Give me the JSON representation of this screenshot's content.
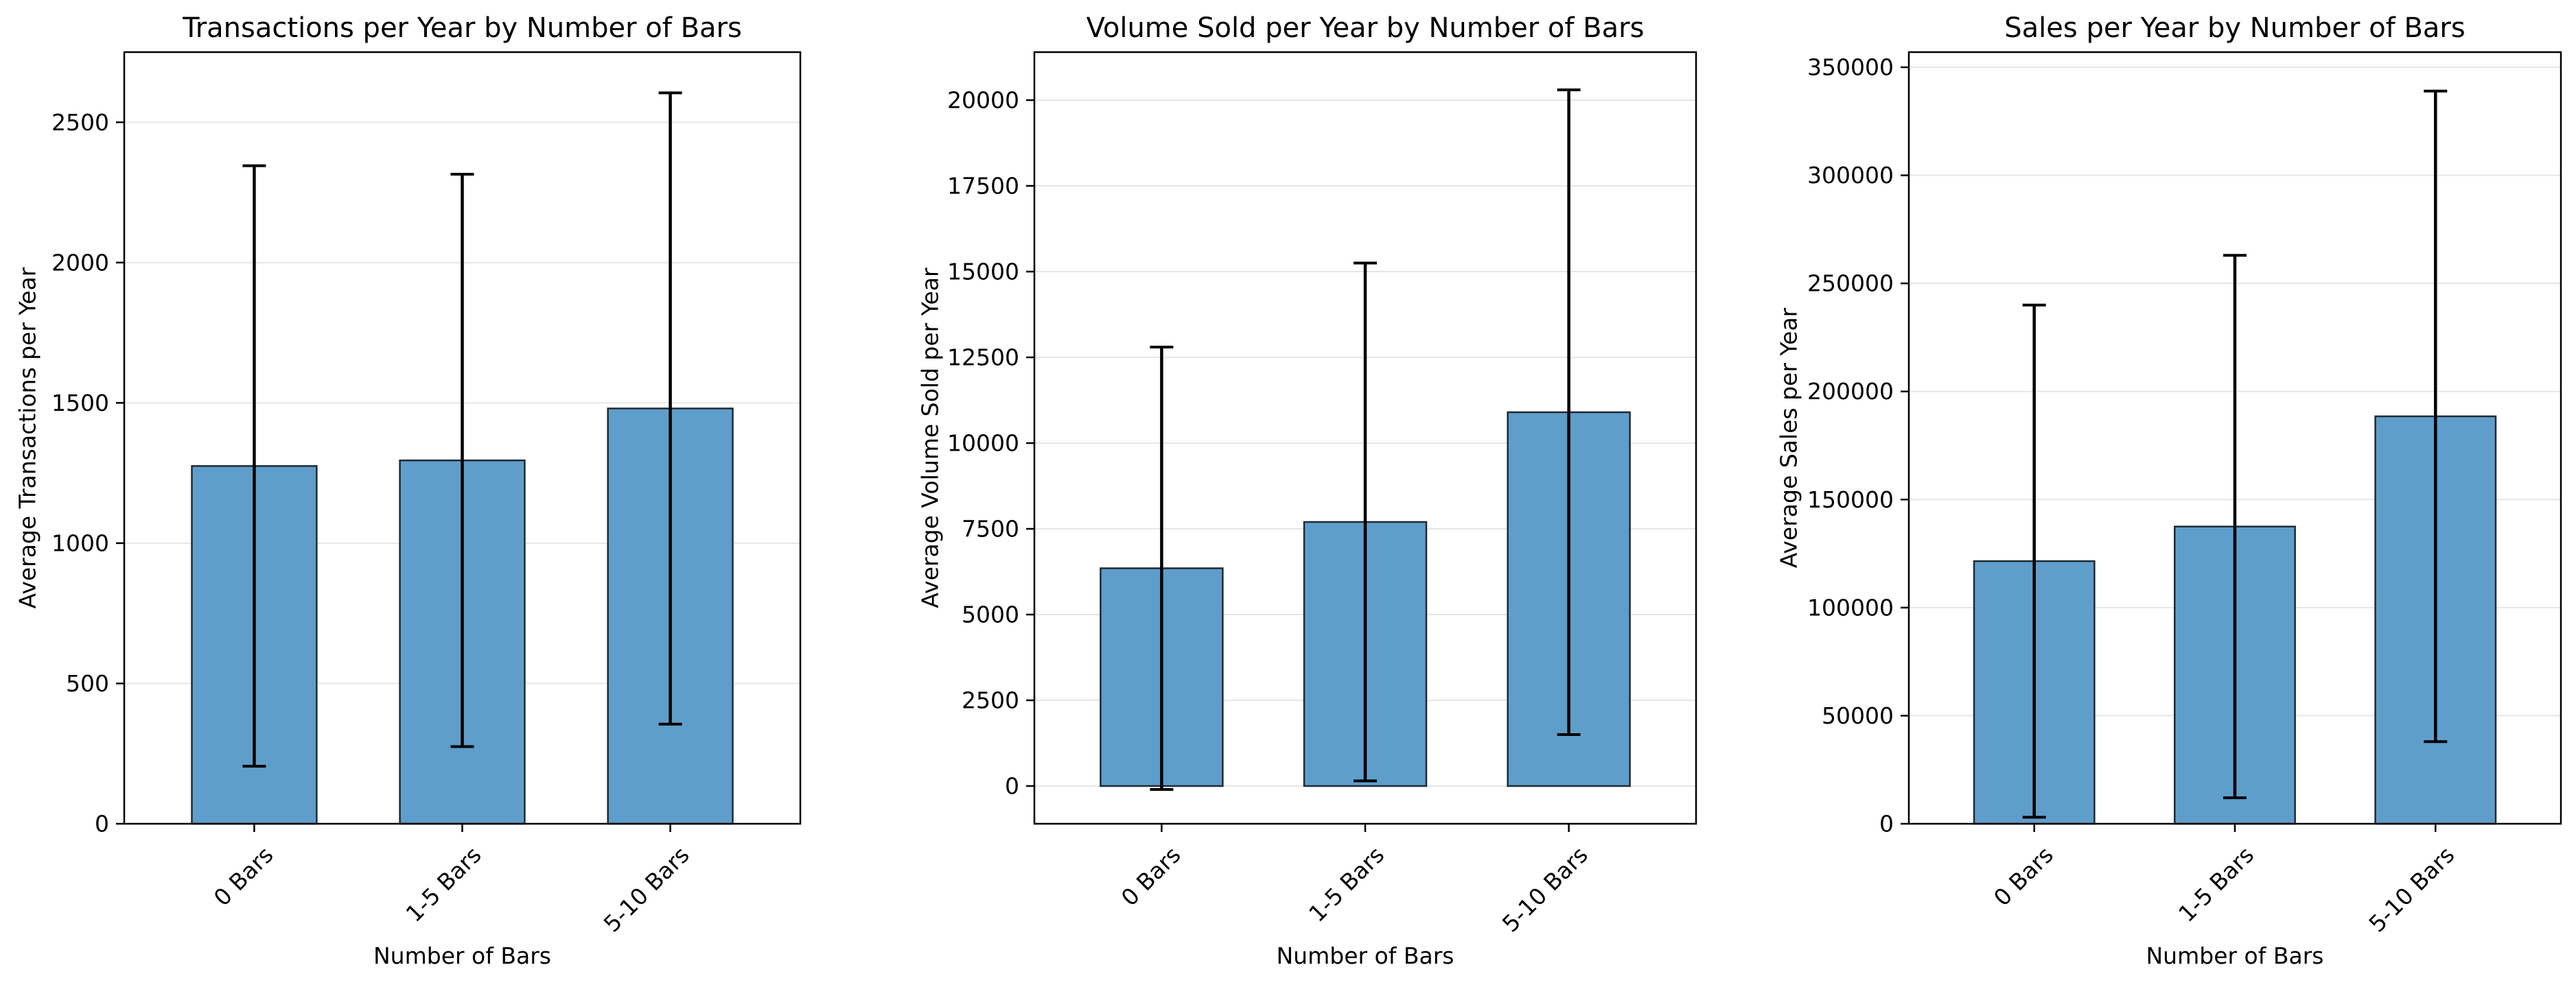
{
  "chart_data": [
    {
      "type": "bar",
      "title": "Transactions per Year by Number of Bars",
      "xlabel": "Number of Bars",
      "ylabel": "Average Transactions per Year",
      "categories": [
        "0 Bars",
        "1-5 Bars",
        "5-10 Bars"
      ],
      "values": [
        1275,
        1295,
        1480
      ],
      "errors": [
        1070,
        1020,
        1125
      ],
      "ylim": [
        0,
        2750
      ],
      "yticks": [
        0,
        500,
        1000,
        1500,
        2000,
        2500
      ],
      "grid": true,
      "bar_color": "#5f9ecb",
      "edge_color": "#1f2a33",
      "error_color": "#000000"
    },
    {
      "type": "bar",
      "title": "Volume Sold per Year by Number of Bars",
      "xlabel": "Number of Bars",
      "ylabel": "Average Volume Sold per Year",
      "categories": [
        "0 Bars",
        "1-5 Bars",
        "5-10 Bars"
      ],
      "values": [
        6350,
        7700,
        10900
      ],
      "errors": [
        6450,
        7550,
        9400
      ],
      "ylim": [
        -1100,
        21400
      ],
      "yticks": [
        0,
        2500,
        5000,
        7500,
        10000,
        12500,
        15000,
        17500,
        20000
      ],
      "grid": true,
      "bar_color": "#5f9ecb",
      "edge_color": "#1f2a33",
      "error_color": "#000000"
    },
    {
      "type": "bar",
      "title": "Sales per Year by Number of Bars",
      "xlabel": "Number of Bars",
      "ylabel": "Average Sales per Year",
      "categories": [
        "0 Bars",
        "1-5 Bars",
        "5-10 Bars"
      ],
      "values": [
        121500,
        137500,
        188500
      ],
      "errors": [
        118500,
        125500,
        150500
      ],
      "ylim": [
        0,
        357000
      ],
      "yticks": [
        0,
        50000,
        100000,
        150000,
        200000,
        250000,
        300000,
        350000
      ],
      "grid": true,
      "bar_color": "#5f9ecb",
      "edge_color": "#1f2a33",
      "error_color": "#000000"
    }
  ]
}
